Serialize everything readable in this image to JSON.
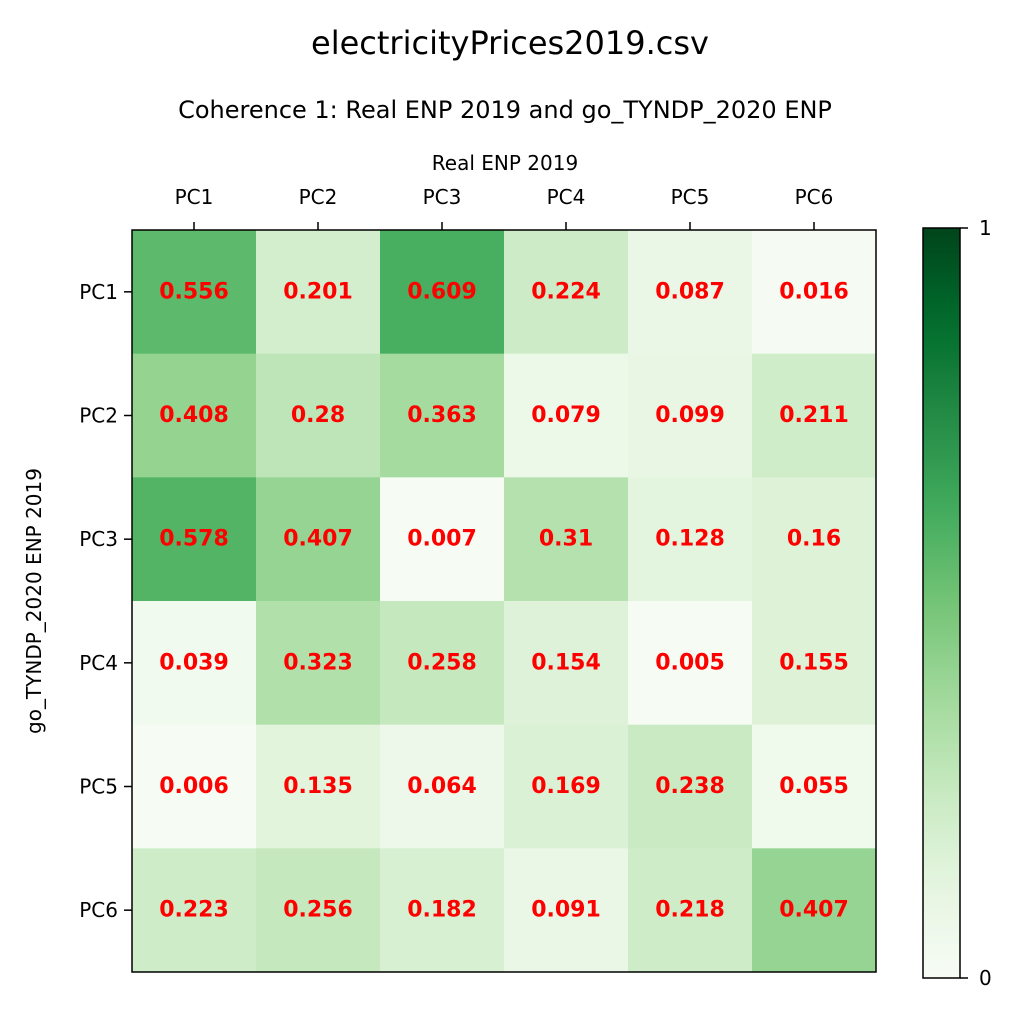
{
  "figure": {
    "suptitle": "electricityPrices2019.csv"
  },
  "chart_data": {
    "type": "heatmap",
    "title": "Coherence 1: Real ENP 2019 and go_TYNDP_2020 ENP",
    "xlabel": "Real ENP 2019",
    "ylabel": "go_TYNDP_2020 ENP 2019",
    "x_categories": [
      "PC1",
      "PC2",
      "PC3",
      "PC4",
      "PC5",
      "PC6"
    ],
    "y_categories": [
      "PC1",
      "PC2",
      "PC3",
      "PC4",
      "PC5",
      "PC6"
    ],
    "x_axis_position": "top",
    "values": [
      [
        0.556,
        0.201,
        0.609,
        0.224,
        0.087,
        0.016
      ],
      [
        0.408,
        0.28,
        0.363,
        0.079,
        0.099,
        0.211
      ],
      [
        0.578,
        0.407,
        0.007,
        0.31,
        0.128,
        0.16
      ],
      [
        0.039,
        0.323,
        0.258,
        0.154,
        0.005,
        0.155
      ],
      [
        0.006,
        0.135,
        0.064,
        0.169,
        0.238,
        0.055
      ],
      [
        0.223,
        0.256,
        0.182,
        0.091,
        0.218,
        0.407
      ]
    ],
    "value_labels": [
      [
        "0.556",
        "0.201",
        "0.609",
        "0.224",
        "0.087",
        "0.016"
      ],
      [
        "0.408",
        "0.28",
        "0.363",
        "0.079",
        "0.099",
        "0.211"
      ],
      [
        "0.578",
        "0.407",
        "0.007",
        "0.31",
        "0.128",
        "0.16"
      ],
      [
        "0.039",
        "0.323",
        "0.258",
        "0.154",
        "0.005",
        "0.155"
      ],
      [
        "0.006",
        "0.135",
        "0.064",
        "0.169",
        "0.238",
        "0.055"
      ],
      [
        "0.223",
        "0.256",
        "0.182",
        "0.091",
        "0.218",
        "0.407"
      ]
    ],
    "vmin": 0,
    "vmax": 1,
    "colormap": "Greens",
    "label_color": "#ff0000",
    "colorbar": {
      "ticks": [
        0,
        1
      ],
      "tick_labels": [
        "0",
        "1"
      ]
    },
    "grid": false
  }
}
